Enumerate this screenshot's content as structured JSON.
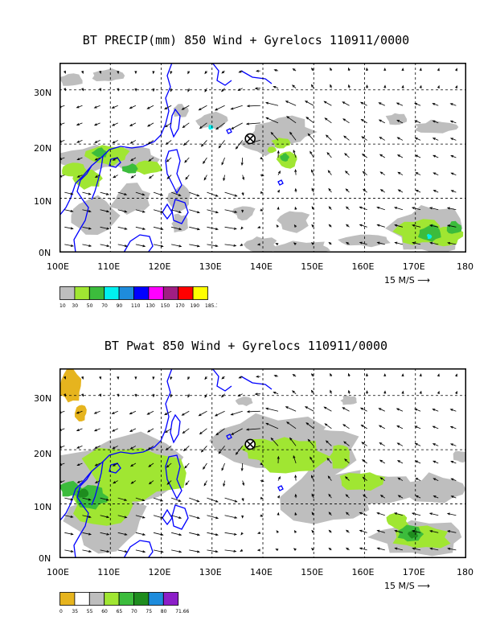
{
  "maps": [
    {
      "title": "BT PRECIP(mm) 850 Wind + Gyrelocs 110911/0000",
      "lat_labels": [
        "30N",
        "20N",
        "10N",
        "0N"
      ],
      "lon_labels": [
        "100E",
        "110E",
        "120E",
        "130E",
        "140E",
        "150E",
        "160E",
        "170E",
        "180"
      ],
      "scale_label": "15 M/S",
      "legend_labels": [
        "10",
        "30",
        "50",
        "70",
        "90",
        "110",
        "130",
        "150",
        "170",
        "190",
        "185.1"
      ],
      "legend_colors": [
        "#bebebe",
        "#a0e632",
        "#3cbc3c",
        "#00f0f0",
        "#1e8cdc",
        "#0000ff",
        "#ff00ff",
        "#a01e82",
        "#ff0000",
        "#ffff00"
      ],
      "gyre_loc": {
        "lon": 137.5,
        "lat": 21
      }
    },
    {
      "title": "BT Pwat 850 Wind + Gyrelocs 110911/0000",
      "lat_labels": [
        "30N",
        "20N",
        "10N",
        "0N"
      ],
      "lon_labels": [
        "100E",
        "110E",
        "120E",
        "130E",
        "140E",
        "150E",
        "160E",
        "170E",
        "180"
      ],
      "scale_label": "15 M/S",
      "legend_labels": [
        "0",
        "35",
        "55",
        "60",
        "65",
        "70",
        "75",
        "80",
        "71.66"
      ],
      "legend_colors": [
        "#e6b41e",
        "#ffffff",
        "#bebebe",
        "#a0e632",
        "#3cbc3c",
        "#1e8c1e",
        "#1e8cdc",
        "#8c1ec8"
      ],
      "gyre_loc": {
        "lon": 137.5,
        "lat": 21
      }
    }
  ]
}
